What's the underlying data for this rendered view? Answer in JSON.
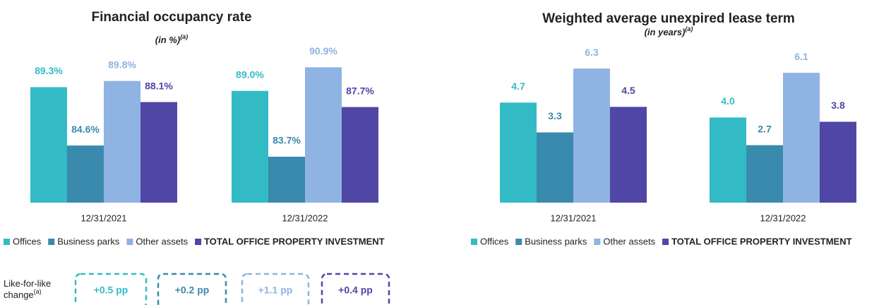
{
  "chart_data": [
    {
      "type": "bar",
      "title": "Financial occupancy rate",
      "subtitle": "(in %)",
      "subtitle_note": "(a)",
      "categories": [
        "12/31/2021",
        "12/31/2022"
      ],
      "series": [
        {
          "name": "Offices",
          "color": "#33bbc5",
          "values": [
            89.3,
            89.0
          ],
          "value_labels": [
            "89.3%",
            "89.0%"
          ]
        },
        {
          "name": "Business parks",
          "color": "#3a8aad",
          "values": [
            84.6,
            83.7
          ],
          "value_labels": [
            "84.6%",
            "83.7%"
          ]
        },
        {
          "name": "Other assets",
          "color": "#8fb3e2",
          "values": [
            89.8,
            90.9
          ],
          "value_labels": [
            "89.8%",
            "90.9%"
          ]
        },
        {
          "name": "TOTAL OFFICE PROPERTY INVESTMENT",
          "color": "#5046a5",
          "values": [
            88.1,
            87.7
          ],
          "value_labels": [
            "88.1%",
            "87.7%"
          ]
        }
      ],
      "ylim": [
        80,
        92
      ],
      "grid": false,
      "legend": "bottom"
    },
    {
      "type": "bar",
      "title": "Weighted average unexpired lease term",
      "subtitle": "(in years)",
      "subtitle_note": "(a)",
      "categories": [
        "12/31/2021",
        "12/31/2022"
      ],
      "series": [
        {
          "name": "Offices",
          "color": "#33bbc5",
          "values": [
            4.7,
            4.0
          ],
          "value_labels": [
            "4.7",
            "4.0"
          ]
        },
        {
          "name": "Business parks",
          "color": "#3a8aad",
          "values": [
            3.3,
            2.7
          ],
          "value_labels": [
            "3.3",
            "2.7"
          ]
        },
        {
          "name": "Other assets",
          "color": "#8fb3e2",
          "values": [
            6.3,
            6.1
          ],
          "value_labels": [
            "6.3",
            "6.1"
          ]
        },
        {
          "name": "TOTAL OFFICE PROPERTY INVESTMENT",
          "color": "#5046a5",
          "values": [
            4.5,
            3.8
          ],
          "value_labels": [
            "4.5",
            "3.8"
          ]
        }
      ],
      "ylim": [
        0,
        7
      ],
      "grid": false,
      "legend": "bottom"
    }
  ],
  "like_for_like": {
    "label_lines": [
      "Like-for-like",
      "change"
    ],
    "note": "(a)",
    "values": [
      "+0.5 pp",
      "+0.2 pp",
      "+1.1 pp",
      "+0.4 pp"
    ],
    "colors": [
      "#33bbc5",
      "#3a8aad",
      "#8fb3e2",
      "#5046a5"
    ]
  }
}
